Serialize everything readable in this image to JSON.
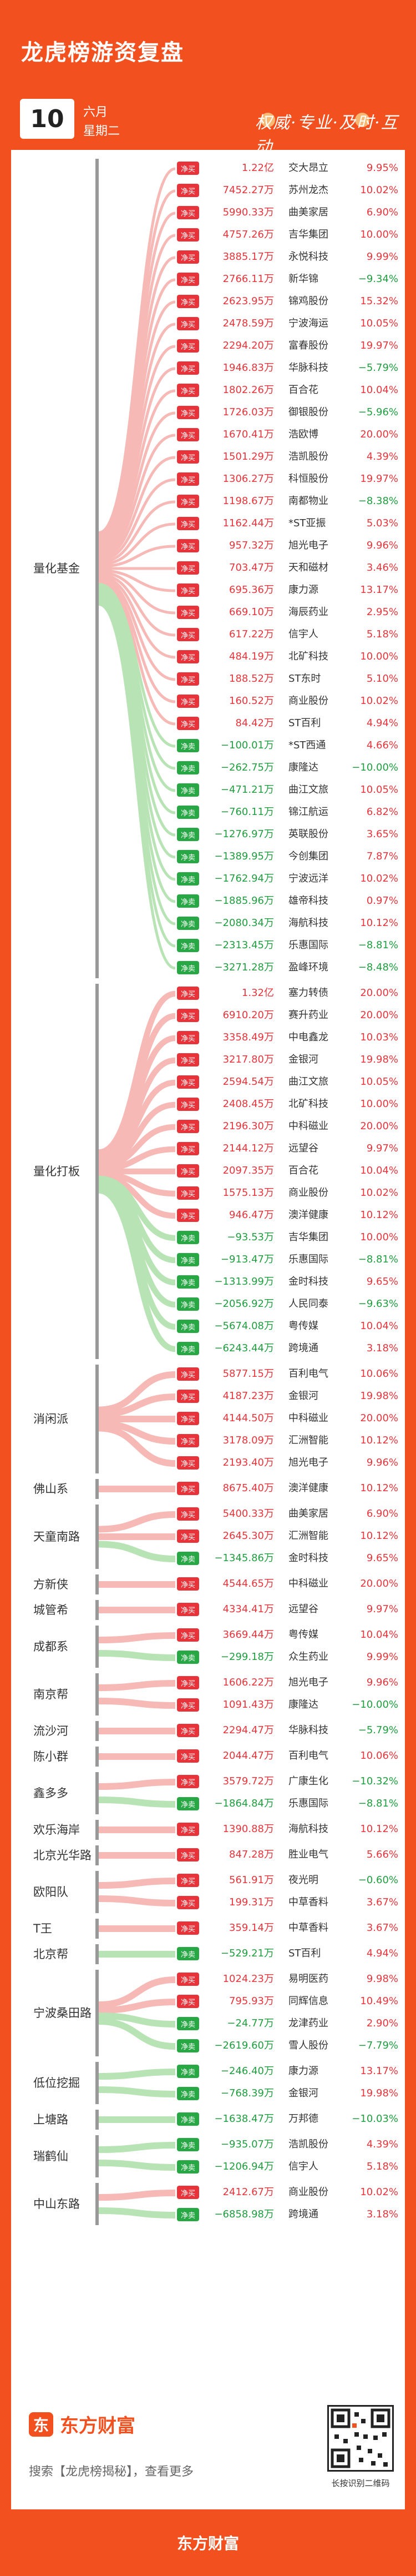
{
  "header": {
    "title": "龙虎榜游资复盘",
    "day": "10",
    "month": "六月",
    "weekday": "星期二",
    "slogan": "权威·专业·及时·互动"
  },
  "badges": {
    "buy": "净买",
    "sell": "净卖"
  },
  "colors": {
    "brand": "#f2511f",
    "buy": "#e8333a",
    "sell": "#27a844",
    "flow_buy": "#f6b9b6",
    "flow_sell": "#b8e3b4"
  },
  "groups": [
    {
      "name": "量化基金",
      "rows": [
        {
          "side": "buy",
          "amount": "1.22亿",
          "stock": "交大昂立",
          "pct": "9.95%"
        },
        {
          "side": "buy",
          "amount": "7452.27万",
          "stock": "苏州龙杰",
          "pct": "10.02%"
        },
        {
          "side": "buy",
          "amount": "5990.33万",
          "stock": "曲美家居",
          "pct": "6.90%"
        },
        {
          "side": "buy",
          "amount": "4757.26万",
          "stock": "吉华集团",
          "pct": "10.00%"
        },
        {
          "side": "buy",
          "amount": "3885.17万",
          "stock": "永悦科技",
          "pct": "9.99%"
        },
        {
          "side": "buy",
          "amount": "2766.11万",
          "stock": "新华锦",
          "pct": "−9.34%"
        },
        {
          "side": "buy",
          "amount": "2623.95万",
          "stock": "锦鸡股份",
          "pct": "15.32%"
        },
        {
          "side": "buy",
          "amount": "2478.59万",
          "stock": "宁波海运",
          "pct": "10.05%"
        },
        {
          "side": "buy",
          "amount": "2294.20万",
          "stock": "富春股份",
          "pct": "19.97%"
        },
        {
          "side": "buy",
          "amount": "1946.83万",
          "stock": "华脉科技",
          "pct": "−5.79%"
        },
        {
          "side": "buy",
          "amount": "1802.26万",
          "stock": "百合花",
          "pct": "10.04%"
        },
        {
          "side": "buy",
          "amount": "1726.03万",
          "stock": "御银股份",
          "pct": "−5.96%"
        },
        {
          "side": "buy",
          "amount": "1670.41万",
          "stock": "浩欧博",
          "pct": "20.00%"
        },
        {
          "side": "buy",
          "amount": "1501.29万",
          "stock": "浩凯股份",
          "pct": "4.39%"
        },
        {
          "side": "buy",
          "amount": "1306.27万",
          "stock": "科恒股份",
          "pct": "19.97%"
        },
        {
          "side": "buy",
          "amount": "1198.67万",
          "stock": "南都物业",
          "pct": "−8.38%"
        },
        {
          "side": "buy",
          "amount": "1162.44万",
          "stock": "*ST亚振",
          "pct": "5.03%"
        },
        {
          "side": "buy",
          "amount": "957.32万",
          "stock": "旭光电子",
          "pct": "9.96%"
        },
        {
          "side": "buy",
          "amount": "703.47万",
          "stock": "天和磁材",
          "pct": "3.46%"
        },
        {
          "side": "buy",
          "amount": "695.36万",
          "stock": "康力源",
          "pct": "13.17%"
        },
        {
          "side": "buy",
          "amount": "669.10万",
          "stock": "海辰药业",
          "pct": "2.95%"
        },
        {
          "side": "buy",
          "amount": "617.22万",
          "stock": "信宇人",
          "pct": "5.18%"
        },
        {
          "side": "buy",
          "amount": "484.19万",
          "stock": "北矿科技",
          "pct": "10.00%"
        },
        {
          "side": "buy",
          "amount": "188.52万",
          "stock": "ST东时",
          "pct": "5.10%"
        },
        {
          "side": "buy",
          "amount": "160.52万",
          "stock": "商业股份",
          "pct": "10.02%"
        },
        {
          "side": "buy",
          "amount": "84.42万",
          "stock": "ST百利",
          "pct": "4.94%"
        },
        {
          "side": "sell",
          "amount": "−100.01万",
          "stock": "*ST西通",
          "pct": "4.66%"
        },
        {
          "side": "sell",
          "amount": "−262.75万",
          "stock": "康隆达",
          "pct": "−10.00%"
        },
        {
          "side": "sell",
          "amount": "−471.21万",
          "stock": "曲江文旅",
          "pct": "10.05%"
        },
        {
          "side": "sell",
          "amount": "−760.11万",
          "stock": "锦江航运",
          "pct": "6.82%"
        },
        {
          "side": "sell",
          "amount": "−1276.97万",
          "stock": "英联股份",
          "pct": "3.65%"
        },
        {
          "side": "sell",
          "amount": "−1389.95万",
          "stock": "今创集团",
          "pct": "7.87%"
        },
        {
          "side": "sell",
          "amount": "−1762.94万",
          "stock": "宁波远洋",
          "pct": "10.02%"
        },
        {
          "side": "sell",
          "amount": "−1885.96万",
          "stock": "雄帝科技",
          "pct": "0.97%"
        },
        {
          "side": "sell",
          "amount": "−2080.34万",
          "stock": "海航科技",
          "pct": "10.12%"
        },
        {
          "side": "sell",
          "amount": "−2313.45万",
          "stock": "乐惠国际",
          "pct": "−8.81%"
        },
        {
          "side": "sell",
          "amount": "−3271.28万",
          "stock": "盈峰环境",
          "pct": "−8.48%"
        }
      ]
    },
    {
      "name": "量化打板",
      "rows": [
        {
          "side": "buy",
          "amount": "1.32亿",
          "stock": "塞力转债",
          "pct": "20.00%"
        },
        {
          "side": "buy",
          "amount": "6910.20万",
          "stock": "赛升药业",
          "pct": "20.00%"
        },
        {
          "side": "buy",
          "amount": "3358.49万",
          "stock": "中电鑫龙",
          "pct": "10.03%"
        },
        {
          "side": "buy",
          "amount": "3217.80万",
          "stock": "金银河",
          "pct": "19.98%"
        },
        {
          "side": "buy",
          "amount": "2594.54万",
          "stock": "曲江文旅",
          "pct": "10.05%"
        },
        {
          "side": "buy",
          "amount": "2408.45万",
          "stock": "北矿科技",
          "pct": "10.00%"
        },
        {
          "side": "buy",
          "amount": "2196.30万",
          "stock": "中科磁业",
          "pct": "20.00%"
        },
        {
          "side": "buy",
          "amount": "2144.12万",
          "stock": "远望谷",
          "pct": "9.97%"
        },
        {
          "side": "buy",
          "amount": "2097.35万",
          "stock": "百合花",
          "pct": "10.04%"
        },
        {
          "side": "buy",
          "amount": "1575.13万",
          "stock": "商业股份",
          "pct": "10.02%"
        },
        {
          "side": "buy",
          "amount": "946.47万",
          "stock": "澳洋健康",
          "pct": "10.12%"
        },
        {
          "side": "sell",
          "amount": "−93.53万",
          "stock": "吉华集团",
          "pct": "10.00%"
        },
        {
          "side": "sell",
          "amount": "−913.47万",
          "stock": "乐惠国际",
          "pct": "−8.81%"
        },
        {
          "side": "sell",
          "amount": "−1313.99万",
          "stock": "金时科技",
          "pct": "9.65%"
        },
        {
          "side": "sell",
          "amount": "−2056.92万",
          "stock": "人民同泰",
          "pct": "−9.63%"
        },
        {
          "side": "sell",
          "amount": "−5674.08万",
          "stock": "粤传媒",
          "pct": "10.04%"
        },
        {
          "side": "sell",
          "amount": "−6243.44万",
          "stock": "跨境通",
          "pct": "3.18%"
        }
      ]
    },
    {
      "name": "消闲派",
      "rows": [
        {
          "side": "buy",
          "amount": "5877.15万",
          "stock": "百利电气",
          "pct": "10.06%"
        },
        {
          "side": "buy",
          "amount": "4187.23万",
          "stock": "金银河",
          "pct": "19.98%"
        },
        {
          "side": "buy",
          "amount": "4144.50万",
          "stock": "中科磁业",
          "pct": "20.00%"
        },
        {
          "side": "buy",
          "amount": "3178.09万",
          "stock": "汇洲智能",
          "pct": "10.12%"
        },
        {
          "side": "buy",
          "amount": "2193.40万",
          "stock": "旭光电子",
          "pct": "9.96%"
        }
      ]
    },
    {
      "name": "佛山系",
      "rows": [
        {
          "side": "buy",
          "amount": "8675.40万",
          "stock": "澳洋健康",
          "pct": "10.12%"
        }
      ]
    },
    {
      "name": "天童南路",
      "rows": [
        {
          "side": "buy",
          "amount": "5400.33万",
          "stock": "曲美家居",
          "pct": "6.90%"
        },
        {
          "side": "buy",
          "amount": "2645.30万",
          "stock": "汇洲智能",
          "pct": "10.12%"
        },
        {
          "side": "sell",
          "amount": "−1345.86万",
          "stock": "金时科技",
          "pct": "9.65%"
        }
      ]
    },
    {
      "name": "方新侠",
      "rows": [
        {
          "side": "buy",
          "amount": "4544.65万",
          "stock": "中科磁业",
          "pct": "20.00%"
        }
      ]
    },
    {
      "name": "城管希",
      "rows": [
        {
          "side": "buy",
          "amount": "4334.41万",
          "stock": "远望谷",
          "pct": "9.97%"
        }
      ]
    },
    {
      "name": "成都系",
      "rows": [
        {
          "side": "buy",
          "amount": "3669.44万",
          "stock": "粤传媒",
          "pct": "10.04%"
        },
        {
          "side": "sell",
          "amount": "−299.18万",
          "stock": "众生药业",
          "pct": "9.99%"
        }
      ]
    },
    {
      "name": "南京帮",
      "rows": [
        {
          "side": "buy",
          "amount": "1606.22万",
          "stock": "旭光电子",
          "pct": "9.96%"
        },
        {
          "side": "buy",
          "amount": "1091.43万",
          "stock": "康隆达",
          "pct": "−10.00%"
        }
      ]
    },
    {
      "name": "流沙河",
      "rows": [
        {
          "side": "buy",
          "amount": "2294.47万",
          "stock": "华脉科技",
          "pct": "−5.79%"
        }
      ]
    },
    {
      "name": "陈小群",
      "rows": [
        {
          "side": "buy",
          "amount": "2044.47万",
          "stock": "百利电气",
          "pct": "10.06%"
        }
      ]
    },
    {
      "name": "鑫多多",
      "rows": [
        {
          "side": "buy",
          "amount": "3579.72万",
          "stock": "广康生化",
          "pct": "−10.32%"
        },
        {
          "side": "sell",
          "amount": "−1864.84万",
          "stock": "乐惠国际",
          "pct": "−8.81%"
        }
      ]
    },
    {
      "name": "欢乐海岸",
      "rows": [
        {
          "side": "buy",
          "amount": "1390.88万",
          "stock": "海航科技",
          "pct": "10.12%"
        }
      ]
    },
    {
      "name": "北京光华路",
      "rows": [
        {
          "side": "buy",
          "amount": "847.28万",
          "stock": "胜业电气",
          "pct": "5.66%"
        }
      ]
    },
    {
      "name": "欧阳队",
      "rows": [
        {
          "side": "buy",
          "amount": "561.91万",
          "stock": "夜光明",
          "pct": "−0.60%"
        },
        {
          "side": "buy",
          "amount": "199.31万",
          "stock": "中草香料",
          "pct": "3.67%"
        }
      ]
    },
    {
      "name": "T王",
      "rows": [
        {
          "side": "buy",
          "amount": "359.14万",
          "stock": "中草香料",
          "pct": "3.67%"
        }
      ]
    },
    {
      "name": "北京帮",
      "rows": [
        {
          "side": "sell",
          "amount": "−529.21万",
          "stock": "ST百利",
          "pct": "4.94%"
        }
      ]
    },
    {
      "name": "宁波桑田路",
      "rows": [
        {
          "side": "buy",
          "amount": "1024.23万",
          "stock": "易明医药",
          "pct": "9.98%"
        },
        {
          "side": "buy",
          "amount": "795.93万",
          "stock": "同辉信息",
          "pct": "10.49%"
        },
        {
          "side": "sell",
          "amount": "−24.77万",
          "stock": "龙津药业",
          "pct": "2.90%"
        },
        {
          "side": "sell",
          "amount": "−2619.60万",
          "stock": "雪人股份",
          "pct": "−7.79%"
        }
      ]
    },
    {
      "name": "低位挖掘",
      "rows": [
        {
          "side": "sell",
          "amount": "−246.40万",
          "stock": "康力源",
          "pct": "13.17%"
        },
        {
          "side": "sell",
          "amount": "−768.39万",
          "stock": "金银河",
          "pct": "19.98%"
        }
      ]
    },
    {
      "name": "上塘路",
      "rows": [
        {
          "side": "sell",
          "amount": "−1638.47万",
          "stock": "万邦德",
          "pct": "−10.03%"
        }
      ]
    },
    {
      "name": "瑞鹤仙",
      "rows": [
        {
          "side": "sell",
          "amount": "−935.07万",
          "stock": "浩凯股份",
          "pct": "4.39%"
        },
        {
          "side": "sell",
          "amount": "−1206.94万",
          "stock": "信宇人",
          "pct": "5.18%"
        }
      ]
    },
    {
      "name": "中山东路",
      "rows": [
        {
          "side": "buy",
          "amount": "2412.67万",
          "stock": "商业股份",
          "pct": "10.02%"
        },
        {
          "side": "sell",
          "amount": "−6858.98万",
          "stock": "跨境通",
          "pct": "3.18%"
        }
      ]
    }
  ],
  "footer": {
    "brand": "东方财富",
    "logo_glyph": "东",
    "search_text": "搜索【龙虎榜揭秘】，查看更多",
    "qr_caption": "长按识别二维码",
    "bottom_brand": "东方财富"
  }
}
